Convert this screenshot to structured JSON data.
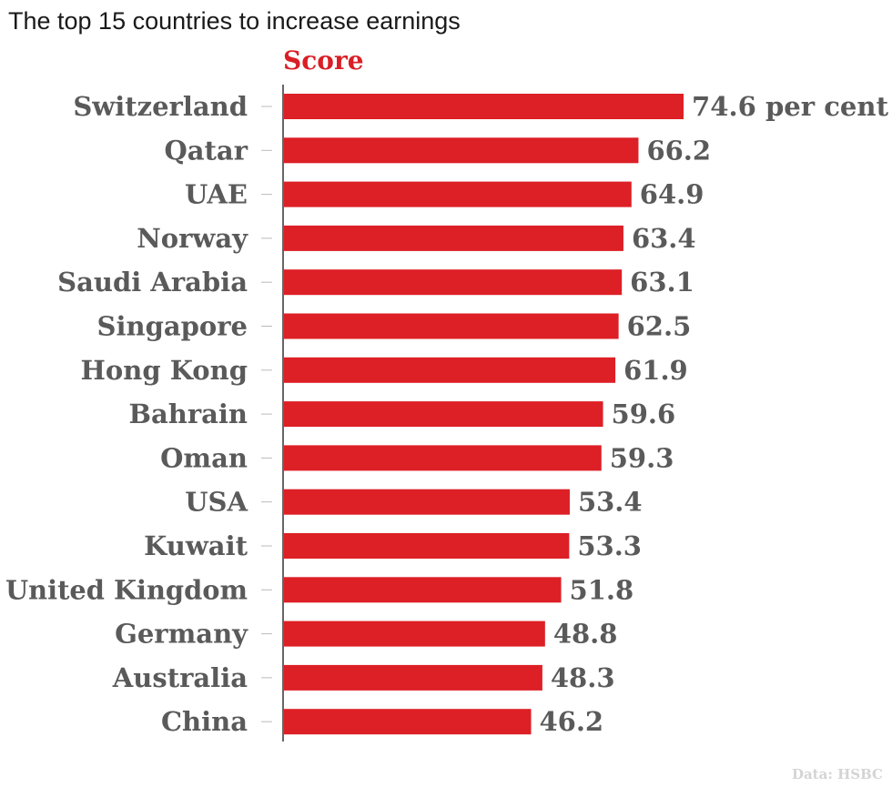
{
  "chart_data": {
    "type": "bar",
    "orientation": "horizontal",
    "title": "The top 15 countries to increase earnings",
    "series": [
      {
        "name": "Score",
        "values": [
          74.6,
          66.2,
          64.9,
          63.4,
          63.1,
          62.5,
          61.9,
          59.6,
          59.3,
          53.4,
          53.3,
          51.8,
          48.8,
          48.3,
          46.2
        ]
      }
    ],
    "categories": [
      "Switzerland",
      "Qatar",
      "UAE",
      "Norway",
      "Saudi Arabia",
      "Singapore",
      "Hong Kong",
      "Bahrain",
      "Oman",
      "USA",
      "Kuwait",
      "United Kingdom",
      "Germany",
      "Australia",
      "China"
    ],
    "value_labels": [
      "74.6 per cent",
      "66.2",
      "64.9",
      "63.4",
      "63.1",
      "62.5",
      "61.9",
      "59.6",
      "59.3",
      "53.4",
      "53.3",
      "51.8",
      "48.8",
      "48.3",
      "46.2"
    ],
    "xlim": [
      0,
      74.6
    ],
    "grid": false,
    "source": "Data: HSBC",
    "colors": {
      "bar": "#dd1f26",
      "series_label": "#d91f26",
      "labels": "#5a5a5a",
      "axis": "#333333",
      "ticks": "#bbbbbb",
      "source": "#d4d4d4"
    }
  }
}
